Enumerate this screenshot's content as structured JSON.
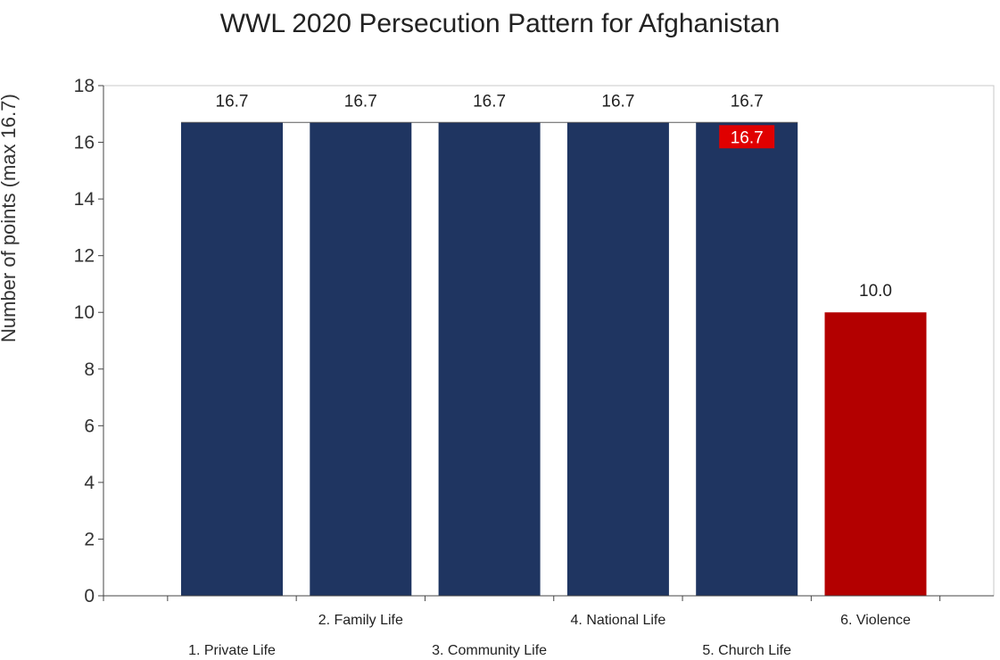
{
  "chart_data": {
    "type": "bar",
    "title": "WWL 2020 Persecution Pattern for Afghanistan",
    "xlabel": "",
    "ylabel": "Number of points (max 16.7)",
    "ylim": [
      0,
      18
    ],
    "yticks": [
      "0",
      "2",
      "4",
      "6",
      "8",
      "10",
      "12",
      "14",
      "16",
      "18"
    ],
    "categories": [
      "1. Private Life",
      "2. Family Life",
      "3. Community Life",
      "4. National Life",
      "5. Church Life",
      "6. Violence"
    ],
    "values": [
      16.7,
      16.7,
      16.7,
      16.7,
      16.7,
      10.0
    ],
    "data_labels": [
      "16.7",
      "16.7",
      "16.7",
      "16.7",
      "16.7",
      "10.0"
    ],
    "average_label": "16.7",
    "colors": {
      "bar_main": "#1f3561",
      "bar_violence": "#b30000",
      "average_badge": "#e00000",
      "grid_frame": "#c8c8c8"
    },
    "grid": false,
    "legend": "none"
  }
}
